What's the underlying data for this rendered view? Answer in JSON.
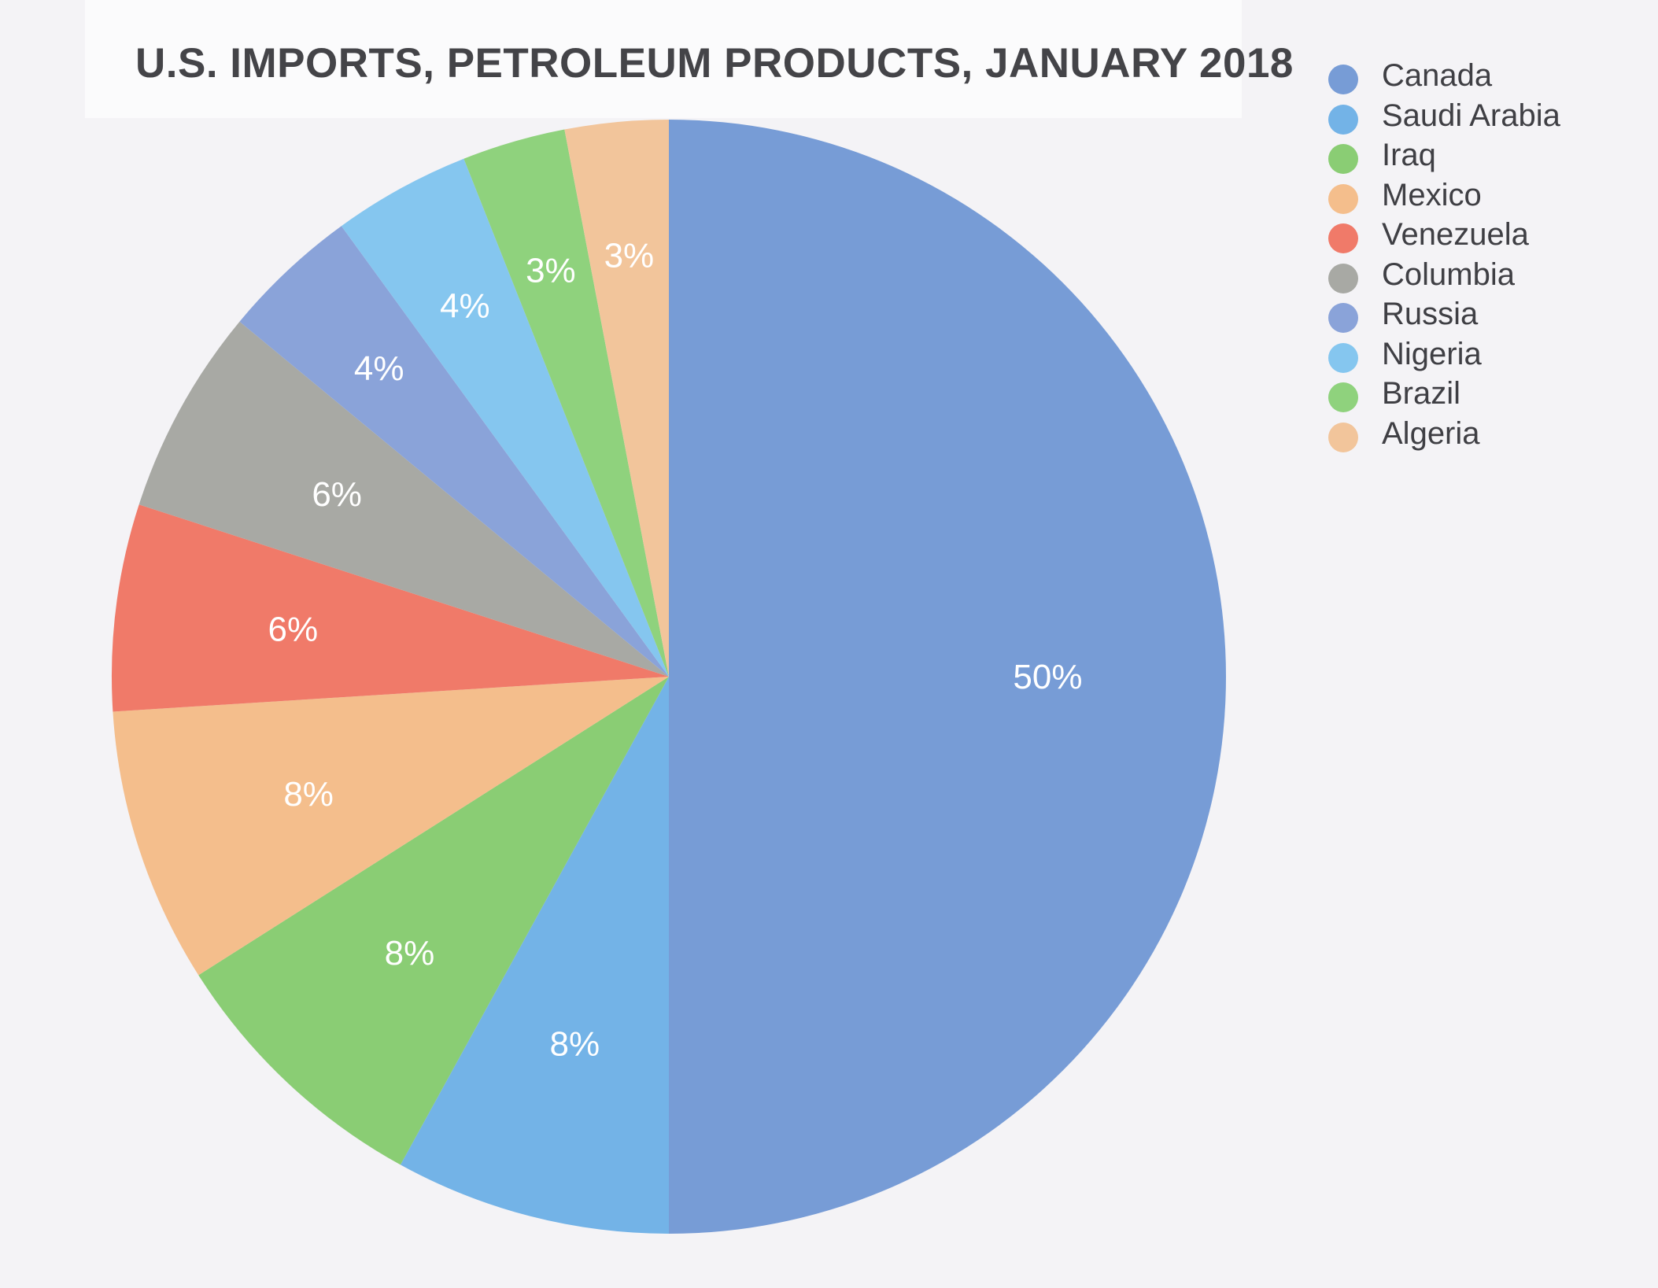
{
  "chart_data": {
    "type": "pie",
    "title": "U.S. IMPORTS, PETROLEUM PRODUCTS, JANUARY 2018",
    "legend_position": "top-right",
    "slices": [
      {
        "name": "Canada",
        "value": 50,
        "label": "50%",
        "color": "#779cd6"
      },
      {
        "name": "Saudi Arabia",
        "value": 8,
        "label": "8%",
        "color": "#73b3e7"
      },
      {
        "name": "Iraq",
        "value": 8,
        "label": "8%",
        "color": "#8acd74"
      },
      {
        "name": "Mexico",
        "value": 8,
        "label": "8%",
        "color": "#f4be8c"
      },
      {
        "name": "Venezuela",
        "value": 6,
        "label": "6%",
        "color": "#f07a69"
      },
      {
        "name": "Columbia",
        "value": 6,
        "label": "6%",
        "color": "#a8a9a4"
      },
      {
        "name": "Russia",
        "value": 4,
        "label": "4%",
        "color": "#8aa3d9"
      },
      {
        "name": "Nigeria",
        "value": 4,
        "label": "4%",
        "color": "#85c6ef"
      },
      {
        "name": "Brazil",
        "value": 3,
        "label": "3%",
        "color": "#8fd27d"
      },
      {
        "name": "Algeria",
        "value": 3,
        "label": "3%",
        "color": "#f2c59b"
      }
    ]
  }
}
